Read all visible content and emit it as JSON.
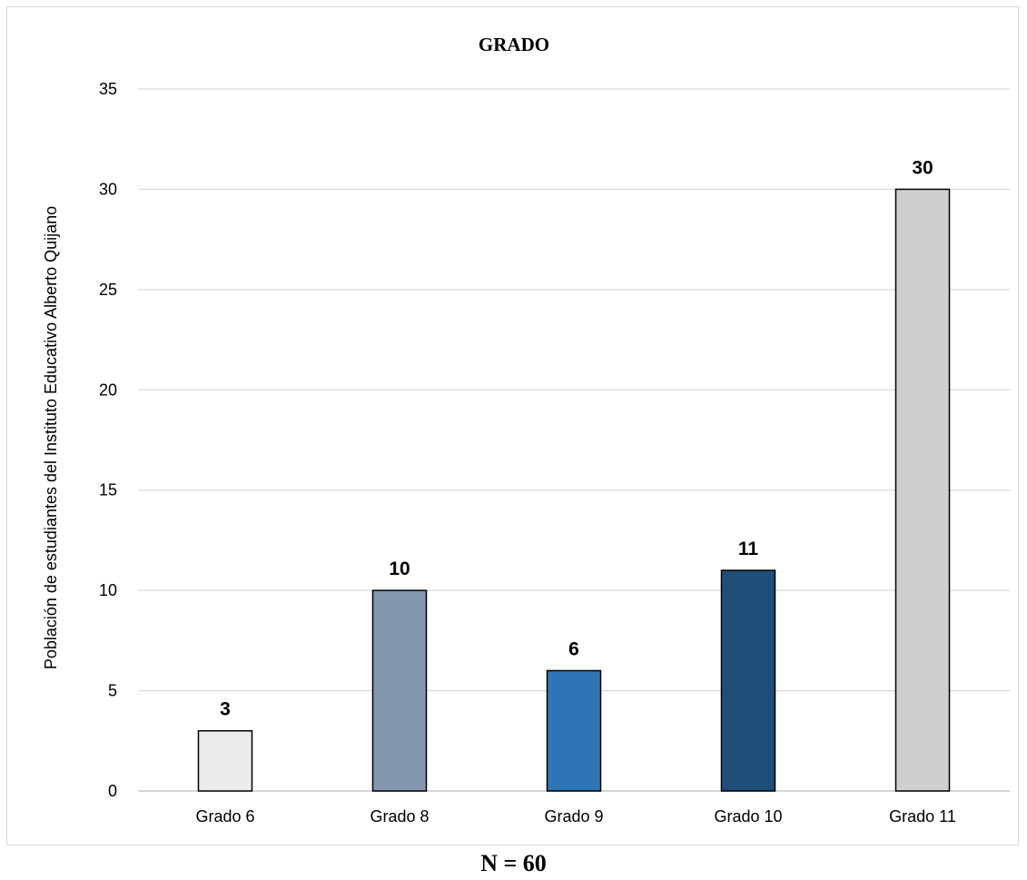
{
  "chart_data": {
    "type": "bar",
    "title": "GRADO",
    "ylabel": "Población de estudiantes del Instituto Educativo Alberto Quijano",
    "xlabel": "",
    "categories": [
      "Grado 6",
      "Grado 8",
      "Grado 9",
      "Grado 10",
      "Grado 11"
    ],
    "values": [
      3,
      10,
      6,
      11,
      30
    ],
    "data_labels": [
      "3",
      "10",
      "6",
      "11",
      "30"
    ],
    "colors": [
      "#ebebeb",
      "#8497b0",
      "#2e75b6",
      "#1f4e79",
      "#d0cece"
    ],
    "ylim": [
      0,
      35
    ],
    "yticks": [
      "0",
      "5",
      "10",
      "15",
      "20",
      "25",
      "30",
      "35"
    ],
    "grid": true,
    "legend": "none"
  },
  "footer": {
    "text": "N = 60"
  }
}
